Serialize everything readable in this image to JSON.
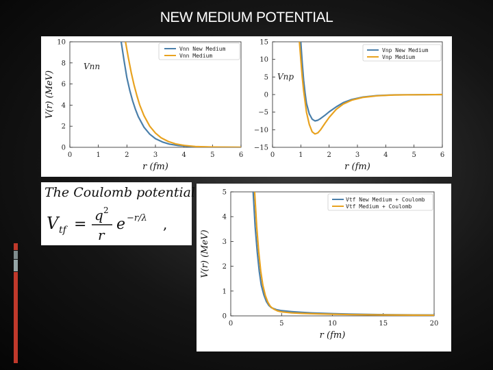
{
  "slide": {
    "title": "NEW MEDIUM POTENTIAL",
    "accent_colors": [
      "#c0392b",
      "#7f8c8d",
      "#95a5a6",
      "#c0392b"
    ]
  },
  "formula": {
    "heading": "The Coulomb potential",
    "lhs": "V",
    "lhs_sub": "tf",
    "numerator": "q",
    "numerator_sup": "2",
    "denominator": "r",
    "exp_base": "e",
    "exponent": "−r/λ",
    "trailing": ","
  },
  "chart_data": [
    {
      "type": "line",
      "annotation": "Vnn",
      "xlabel": "r (fm)",
      "ylabel": "V(r) (MeV)",
      "xlim": [
        0,
        6
      ],
      "ylim": [
        0,
        10
      ],
      "xticks": [
        "0",
        "1",
        "2",
        "3",
        "4",
        "5",
        "6"
      ],
      "yticks": [
        "0",
        "2",
        "4",
        "6",
        "8",
        "10"
      ],
      "legend_position": "top-right",
      "series": [
        {
          "name": "Vnn New Medium",
          "color": "#4a7faa",
          "x": [
            1.8,
            1.9,
            2.0,
            2.1,
            2.2,
            2.3,
            2.4,
            2.6,
            2.8,
            3.0,
            3.25,
            3.5,
            3.8,
            4.2,
            4.6,
            5.0,
            5.5,
            6.0
          ],
          "y": [
            10.0,
            8.2,
            6.6,
            5.4,
            4.4,
            3.6,
            2.9,
            1.9,
            1.25,
            0.82,
            0.5,
            0.3,
            0.17,
            0.08,
            0.04,
            0.02,
            0.01,
            0.0
          ]
        },
        {
          "name": "Vnn Medium",
          "color": "#e8a21f",
          "x": [
            1.95,
            2.05,
            2.15,
            2.25,
            2.35,
            2.45,
            2.6,
            2.8,
            3.0,
            3.2,
            3.45,
            3.7,
            4.0,
            4.4,
            4.8,
            5.2,
            5.6,
            6.0
          ],
          "y": [
            10.0,
            8.5,
            7.1,
            5.9,
            4.9,
            4.0,
            3.0,
            2.0,
            1.35,
            0.9,
            0.55,
            0.33,
            0.18,
            0.08,
            0.04,
            0.02,
            0.01,
            0.0
          ]
        }
      ]
    },
    {
      "type": "line",
      "annotation": "Vnp",
      "xlabel": "r (fm)",
      "ylabel": "",
      "xlim": [
        0,
        6
      ],
      "ylim": [
        -15,
        15
      ],
      "xticks": [
        "0",
        "1",
        "2",
        "3",
        "4",
        "5",
        "6"
      ],
      "yticks": [
        "−15",
        "−10",
        "−5",
        "0",
        "5",
        "10",
        "15"
      ],
      "legend_position": "top-right",
      "series": [
        {
          "name": "Vnp New Medium",
          "color": "#4a7faa",
          "x": [
            1.0,
            1.05,
            1.1,
            1.15,
            1.2,
            1.3,
            1.4,
            1.5,
            1.6,
            1.7,
            1.85,
            2.0,
            2.25,
            2.5,
            2.8,
            3.2,
            3.7,
            4.3,
            5.0,
            6.0
          ],
          "y": [
            15.0,
            9.0,
            4.0,
            0.5,
            -2.5,
            -5.5,
            -7.0,
            -7.5,
            -7.3,
            -6.8,
            -5.9,
            -4.9,
            -3.5,
            -2.3,
            -1.4,
            -0.7,
            -0.3,
            -0.1,
            -0.05,
            0.0
          ]
        },
        {
          "name": "Vnp Medium",
          "color": "#e8a21f",
          "x": [
            0.95,
            1.0,
            1.05,
            1.1,
            1.2,
            1.3,
            1.4,
            1.5,
            1.6,
            1.7,
            1.85,
            2.0,
            2.25,
            2.5,
            2.8,
            3.2,
            3.7,
            4.3,
            5.0,
            6.0
          ],
          "y": [
            15.0,
            10.0,
            5.0,
            1.0,
            -5.0,
            -8.5,
            -10.6,
            -11.2,
            -10.9,
            -10.0,
            -8.2,
            -6.5,
            -4.2,
            -2.7,
            -1.6,
            -0.8,
            -0.35,
            -0.12,
            -0.05,
            0.0
          ]
        }
      ]
    },
    {
      "type": "line",
      "annotation": "",
      "xlabel": "r (fm)",
      "ylabel": "V(r) (MeV)",
      "xlim": [
        0,
        20
      ],
      "ylim": [
        0,
        5
      ],
      "xticks": [
        "0",
        "5",
        "10",
        "15",
        "20"
      ],
      "yticks": [
        "0",
        "1",
        "2",
        "3",
        "4",
        "5"
      ],
      "legend_position": "top-right",
      "series": [
        {
          "name": "Vtf New Medium + Coulomb",
          "color": "#4a7faa",
          "x": [
            2.2,
            2.4,
            2.6,
            2.8,
            3.0,
            3.25,
            3.5,
            3.75,
            4.0,
            4.5,
            5.0,
            6.0,
            7.0,
            8.0,
            10.0,
            12.0,
            15.0,
            18.0,
            20.0
          ],
          "y": [
            5.0,
            3.6,
            2.6,
            1.8,
            1.25,
            0.85,
            0.58,
            0.42,
            0.33,
            0.25,
            0.21,
            0.17,
            0.14,
            0.12,
            0.09,
            0.07,
            0.05,
            0.04,
            0.035
          ]
        },
        {
          "name": "Vtf Medium + Coulomb",
          "color": "#e8a21f",
          "x": [
            2.35,
            2.55,
            2.75,
            2.95,
            3.15,
            3.4,
            3.65,
            3.9,
            4.2,
            4.6,
            5.0,
            6.0,
            7.0,
            8.0,
            10.0,
            12.0,
            15.0,
            18.0,
            20.0
          ],
          "y": [
            5.0,
            3.6,
            2.6,
            1.8,
            1.25,
            0.82,
            0.55,
            0.38,
            0.28,
            0.2,
            0.16,
            0.12,
            0.1,
            0.085,
            0.065,
            0.05,
            0.04,
            0.03,
            0.025
          ]
        }
      ]
    }
  ]
}
